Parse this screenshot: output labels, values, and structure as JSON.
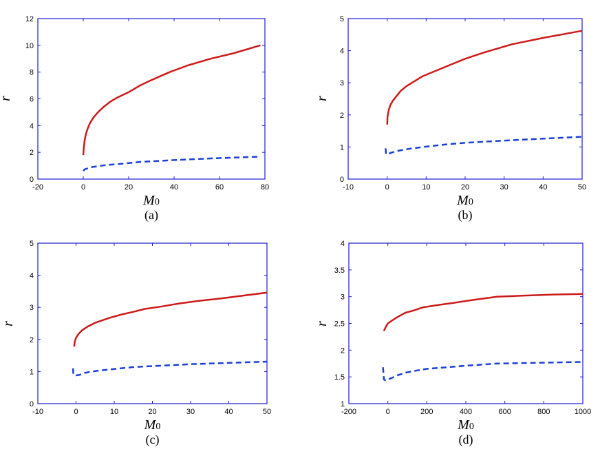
{
  "chart_data": [
    {
      "type": "line",
      "panel_label": "(a)",
      "xlabel_main": "M",
      "xlabel_sub": "0",
      "ylabel": "r",
      "xlim": [
        -20,
        80
      ],
      "ylim": [
        0,
        12
      ],
      "xticks": [
        -20,
        0,
        20,
        40,
        60,
        80
      ],
      "yticks": [
        0,
        2,
        4,
        6,
        8,
        10,
        12
      ],
      "series": [
        {
          "style": "solid",
          "color": "#cc1a1a",
          "x": [
            0,
            0.2,
            0.6,
            1.2,
            2,
            3,
            4.5,
            6.5,
            9,
            12,
            15,
            20,
            25,
            30,
            38,
            46,
            56,
            66,
            78
          ],
          "y": [
            1.8,
            2.3,
            2.9,
            3.4,
            3.8,
            4.2,
            4.6,
            5.0,
            5.4,
            5.8,
            6.1,
            6.5,
            7.0,
            7.4,
            8.0,
            8.5,
            9.0,
            9.4,
            10.0
          ]
        },
        {
          "style": "dashed",
          "color": "#1a3fd9",
          "x": [
            0,
            0.5,
            1,
            2,
            4,
            7,
            10,
            15,
            20,
            25,
            30,
            40,
            50,
            60,
            70,
            78
          ],
          "y": [
            0.62,
            0.7,
            0.76,
            0.8,
            0.9,
            0.98,
            1.05,
            1.12,
            1.2,
            1.28,
            1.33,
            1.42,
            1.5,
            1.57,
            1.63,
            1.68
          ]
        }
      ]
    },
    {
      "type": "line",
      "panel_label": "(b)",
      "xlabel_main": "M",
      "xlabel_sub": "0",
      "ylabel": "r",
      "xlim": [
        -10,
        50
      ],
      "ylim": [
        0,
        5
      ],
      "xticks": [
        -10,
        0,
        10,
        20,
        30,
        40,
        50
      ],
      "yticks": [
        0,
        1,
        2,
        3,
        4,
        5
      ],
      "series": [
        {
          "style": "solid",
          "color": "#cc1a1a",
          "x": [
            0,
            0.1,
            0.4,
            0.8,
            1.5,
            2.5,
            3.5,
            5,
            7,
            9,
            12,
            15,
            20,
            25,
            32,
            40,
            50
          ],
          "y": [
            1.7,
            1.95,
            2.15,
            2.3,
            2.45,
            2.6,
            2.75,
            2.9,
            3.05,
            3.2,
            3.35,
            3.5,
            3.75,
            3.95,
            4.2,
            4.4,
            4.62
          ]
        },
        {
          "style": "dashed",
          "color": "#1a3fd9",
          "x": [
            -0.4,
            -0.3,
            0,
            0.6,
            1,
            2,
            4,
            6,
            10,
            15,
            20,
            30,
            40,
            50
          ],
          "y": [
            0.96,
            0.78,
            0.77,
            0.8,
            0.82,
            0.86,
            0.91,
            0.95,
            1.01,
            1.08,
            1.13,
            1.2,
            1.26,
            1.32
          ]
        }
      ]
    },
    {
      "type": "line",
      "panel_label": "(c)",
      "xlabel_main": "M",
      "xlabel_sub": "0",
      "ylabel": "r",
      "xlim": [
        -10,
        50
      ],
      "ylim": [
        0,
        5
      ],
      "xticks": [
        -10,
        0,
        10,
        20,
        30,
        40,
        50
      ],
      "yticks": [
        0,
        1,
        2,
        3,
        4,
        5
      ],
      "series": [
        {
          "style": "solid",
          "color": "#cc1a1a",
          "x": [
            -0.5,
            -0.3,
            0,
            0.5,
            1.5,
            3,
            5,
            7,
            9,
            12,
            15,
            18,
            22,
            27,
            32,
            38,
            44,
            50
          ],
          "y": [
            1.78,
            1.95,
            2.05,
            2.15,
            2.28,
            2.4,
            2.52,
            2.6,
            2.68,
            2.78,
            2.86,
            2.95,
            3.02,
            3.12,
            3.2,
            3.28,
            3.37,
            3.46
          ]
        },
        {
          "style": "dashed",
          "color": "#1a3fd9",
          "x": [
            -0.8,
            -0.7,
            -0.5,
            0,
            1,
            2,
            4,
            6,
            10,
            15,
            20,
            25,
            30,
            40,
            50
          ],
          "y": [
            1.1,
            0.92,
            0.88,
            0.88,
            0.9,
            0.95,
            1.0,
            1.03,
            1.08,
            1.14,
            1.17,
            1.2,
            1.23,
            1.27,
            1.31
          ]
        }
      ]
    },
    {
      "type": "line",
      "panel_label": "(d)",
      "xlabel_main": "M",
      "xlabel_sub": "0",
      "ylabel": "r",
      "xlim": [
        -200,
        1000
      ],
      "ylim": [
        1,
        4
      ],
      "xticks": [
        -200,
        0,
        200,
        400,
        600,
        800,
        1000
      ],
      "yticks": [
        1,
        1.5,
        2,
        2.5,
        3,
        3.5,
        4
      ],
      "series": [
        {
          "style": "solid",
          "color": "#cc1a1a",
          "x": [
            -20,
            -10,
            0,
            20,
            50,
            90,
            130,
            180,
            250,
            330,
            420,
            560,
            700,
            850,
            1000
          ],
          "y": [
            2.36,
            2.44,
            2.5,
            2.55,
            2.62,
            2.7,
            2.74,
            2.8,
            2.84,
            2.88,
            2.93,
            3.0,
            3.02,
            3.04,
            3.05
          ]
        },
        {
          "style": "dashed",
          "color": "#1a3fd9",
          "x": [
            -25,
            -20,
            -10,
            0,
            20,
            50,
            90,
            150,
            200,
            300,
            400,
            560,
            700,
            850,
            1000
          ],
          "y": [
            1.68,
            1.45,
            1.43,
            1.45,
            1.48,
            1.53,
            1.58,
            1.62,
            1.65,
            1.68,
            1.71,
            1.75,
            1.76,
            1.77,
            1.78
          ]
        }
      ]
    }
  ]
}
